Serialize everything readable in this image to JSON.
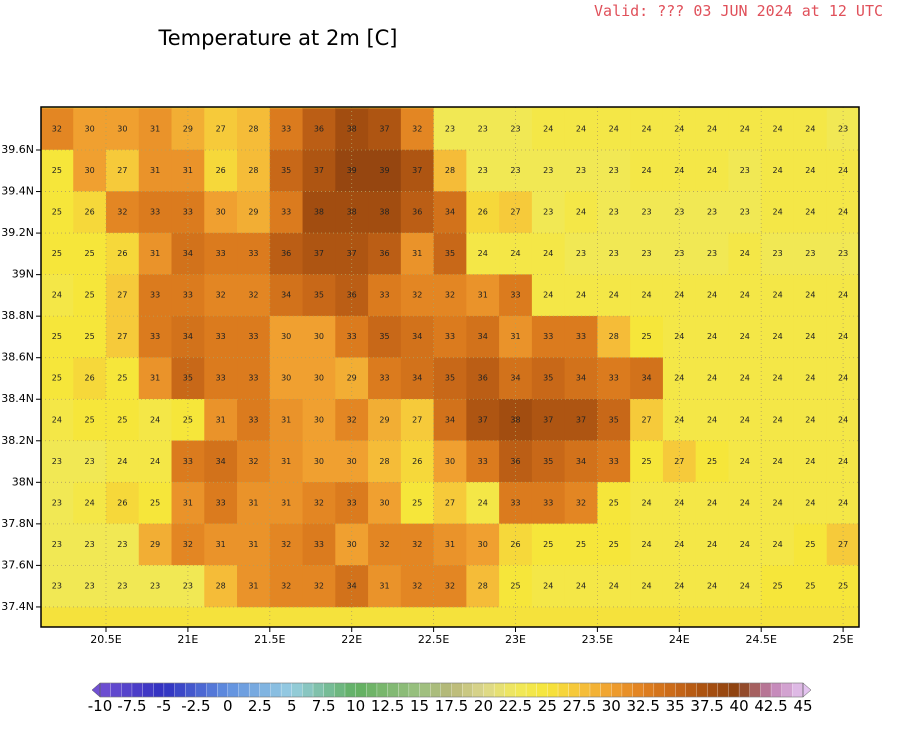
{
  "valid": "Valid: ??? 03 JUN 2024 at 12 UTC",
  "title": "Temperature at 2m [C]",
  "x_axis": {
    "ticks": [
      "20.5E",
      "21E",
      "21.5E",
      "22E",
      "22.5E",
      "23E",
      "23.5E",
      "24E",
      "24.5E",
      "25E"
    ]
  },
  "y_axis": {
    "ticks": [
      "39.6N",
      "39.4N",
      "39.2N",
      "39N",
      "38.8N",
      "38.6N",
      "38.4N",
      "38.2N",
      "38N",
      "37.8N",
      "37.6N",
      "37.4N"
    ]
  },
  "grid": {
    "rows": [
      [
        32,
        30,
        30,
        31,
        29,
        27,
        28,
        33,
        36,
        38,
        37,
        32,
        23,
        23,
        23,
        24,
        24,
        24,
        24,
        24,
        24,
        24,
        24,
        24,
        23
      ],
      [
        25,
        30,
        27,
        31,
        31,
        26,
        28,
        35,
        37,
        39,
        39,
        37,
        28,
        23,
        23,
        23,
        23,
        23,
        24,
        24,
        24,
        23,
        24,
        24,
        24
      ],
      [
        25,
        26,
        32,
        33,
        33,
        30,
        29,
        33,
        38,
        38,
        38,
        36,
        34,
        26,
        27,
        23,
        24,
        23,
        23,
        23,
        23,
        23,
        24,
        24,
        24
      ],
      [
        25,
        25,
        26,
        31,
        34,
        33,
        33,
        36,
        37,
        37,
        36,
        31,
        35,
        24,
        24,
        24,
        23,
        23,
        23,
        23,
        23,
        24,
        23,
        23,
        23
      ],
      [
        24,
        25,
        27,
        33,
        33,
        32,
        32,
        34,
        35,
        36,
        33,
        32,
        32,
        31,
        33,
        24,
        24,
        24,
        24,
        24,
        24,
        24,
        24,
        24,
        24
      ],
      [
        25,
        25,
        27,
        33,
        34,
        33,
        33,
        30,
        30,
        33,
        35,
        34,
        33,
        34,
        31,
        33,
        33,
        28,
        25,
        24,
        24,
        24,
        24,
        24,
        24
      ],
      [
        25,
        26,
        25,
        31,
        35,
        33,
        33,
        30,
        30,
        29,
        33,
        34,
        35,
        36,
        34,
        35,
        34,
        33,
        34,
        24,
        24,
        24,
        24,
        24,
        24
      ],
      [
        24,
        25,
        25,
        24,
        25,
        31,
        33,
        31,
        30,
        32,
        29,
        27,
        34,
        37,
        38,
        37,
        37,
        35,
        27,
        24,
        24,
        24,
        24,
        24,
        24
      ],
      [
        23,
        23,
        24,
        24,
        33,
        34,
        32,
        31,
        30,
        30,
        28,
        26,
        30,
        33,
        36,
        35,
        34,
        33,
        25,
        27,
        25,
        24,
        24,
        24,
        24
      ],
      [
        23,
        24,
        26,
        25,
        31,
        33,
        31,
        31,
        32,
        33,
        30,
        25,
        27,
        24,
        33,
        33,
        32,
        25,
        24,
        24,
        24,
        24,
        24,
        24,
        24
      ],
      [
        23,
        23,
        23,
        29,
        32,
        31,
        31,
        32,
        33,
        30,
        32,
        32,
        31,
        30,
        26,
        25,
        25,
        25,
        24,
        24,
        24,
        24,
        24,
        25,
        27
      ],
      [
        23,
        23,
        23,
        23,
        23,
        28,
        31,
        32,
        32,
        34,
        31,
        32,
        32,
        28,
        25,
        24,
        24,
        24,
        24,
        24,
        24,
        24,
        25,
        25,
        25
      ]
    ]
  },
  "colorbar": {
    "labels": [
      "-10",
      "-7.5",
      "-5",
      "-2.5",
      "0",
      "2.5",
      "5",
      "7.5",
      "10",
      "12.5",
      "15",
      "17.5",
      "20",
      "22.5",
      "25",
      "27.5",
      "30",
      "32.5",
      "35",
      "37.5",
      "40",
      "42.5",
      "45"
    ]
  }
}
